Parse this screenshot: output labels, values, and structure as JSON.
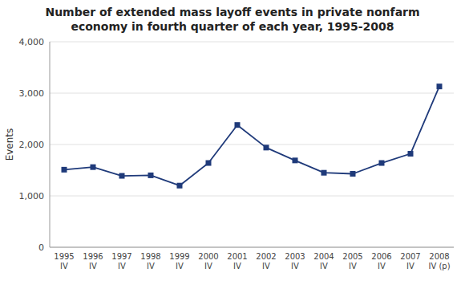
{
  "chart_data": {
    "type": "line",
    "title": "Number of extended mass layoff events in private nonfarm\neconomy in fourth quarter of each year, 1995-2008",
    "y_label": "Events",
    "categories": [
      "1995\nIV",
      "1996\nIV",
      "1997\nIV",
      "1998\nIV",
      "1999\nIV",
      "2000\nIV",
      "2001\nIV",
      "2002\nIV",
      "2003\nIV",
      "2004\nIV",
      "2005\nIV",
      "2006\nIV",
      "2007\nIV",
      "2008\nIV (p)"
    ],
    "values": [
      1510,
      1560,
      1390,
      1400,
      1200,
      1640,
      2380,
      1940,
      1690,
      1450,
      1430,
      1640,
      1820,
      3130
    ],
    "color": "#1F3A7A",
    "marker": "square",
    "ylim": [
      0,
      4000
    ],
    "yticks": [
      0,
      {
        "value": 1000,
        "label": "1,000"
      },
      {
        "value": 2000,
        "label": "2,000"
      },
      {
        "value": 3000,
        "label": "3,000"
      },
      {
        "value": 4000,
        "label": "4,000"
      }
    ],
    "grid": true
  }
}
